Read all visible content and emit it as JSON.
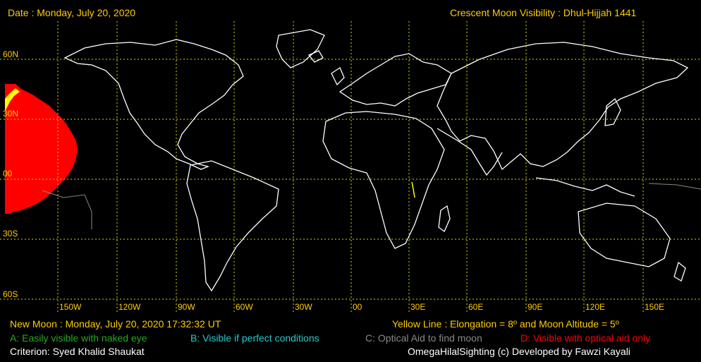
{
  "header": {
    "date": "Date : Monday, July 20, 2020",
    "title": "Crescent Moon Visibility : Dhul-Hijjah  1441"
  },
  "lat_labels": [
    "60N",
    "30N",
    "00",
    "30S",
    "60S"
  ],
  "lon_labels": [
    "150W",
    "120W",
    "90W",
    "60W",
    "30W",
    "00",
    "30E",
    "60E",
    "90E",
    "120E",
    "150E"
  ],
  "footer": {
    "new_moon": "New Moon : Monday, July 20, 2020  17:32:32  UT",
    "yellow_line": "Yellow Line : Elongation = 8º  and Moon Altitude = 5º",
    "legend_a": "A: Easily visible with naked eye",
    "legend_b": "B: Visible if perfect conditions",
    "legend_c": "C: Optical Aid to find moon",
    "legend_d": "D: Visible with optical aid only",
    "criterion": "Criterion: Syed Khalid Shaukat",
    "credit": "OmegaHilalSighting  (c)  Developed by Fawzi Kayali"
  },
  "colors": {
    "background": "#000000",
    "text": "#ffcc00",
    "grid": "#d8d800",
    "coast": "#ffffff",
    "zone_a": "#22aa22",
    "zone_b": "#22cccc",
    "zone_c": "#888888",
    "zone_d": "#ff0000",
    "yellow_line": "#ffff00"
  }
}
